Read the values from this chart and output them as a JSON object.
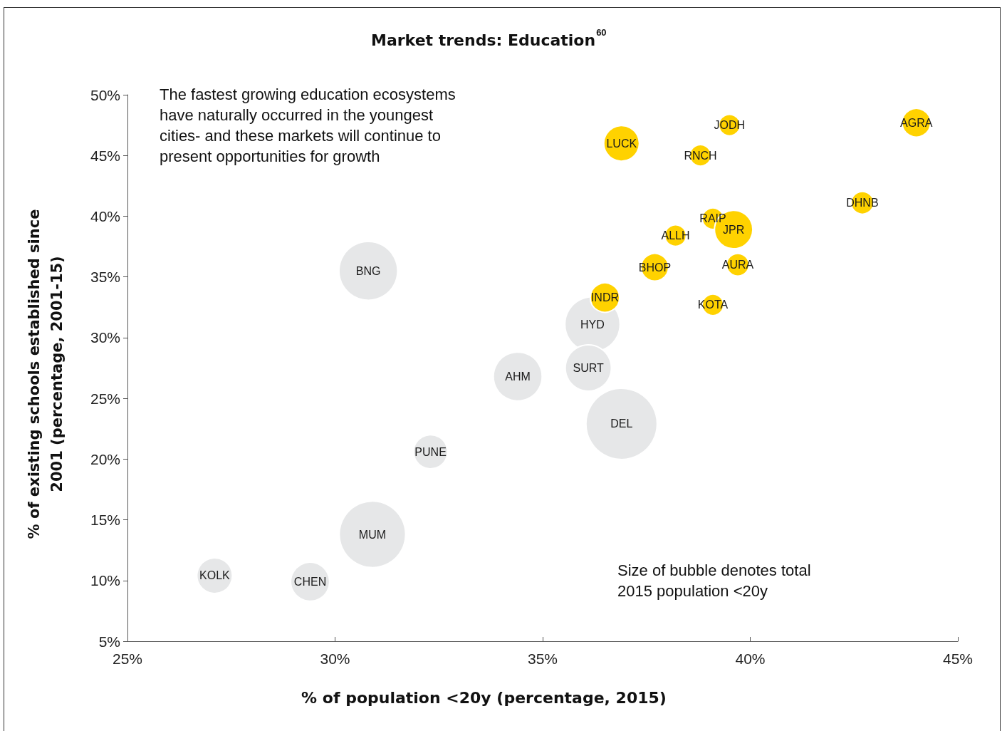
{
  "chart_data": {
    "type": "bubble",
    "title": "Market trends: Education$^{60}$",
    "xlabel": "% of population <20y (percentage, 2015)",
    "ylabel": "% of existing schools established since 2001 (percentage, 2001-15)",
    "annotations": [
      "The fastest growing education ecosystems have naturally occurred in the youngest cities- and these markets will continue to present opportunities for growth",
      "Size of bubble denotes total 2015 population <20y"
    ],
    "xlim": [
      25,
      45
    ],
    "xticks": [
      {
        "value": 25,
        "label": "25%"
      },
      {
        "value": 30,
        "label": "30%"
      },
      {
        "value": 35,
        "label": "35%"
      },
      {
        "value": 40,
        "label": "40%"
      },
      {
        "value": 45,
        "label": "45%"
      }
    ],
    "ylim": [
      5,
      50
    ],
    "yticks": [
      {
        "value": 5,
        "label": "5%"
      },
      {
        "value": 10,
        "label": "10%"
      },
      {
        "value": 15,
        "label": "15%"
      },
      {
        "value": 20,
        "label": "20%"
      },
      {
        "value": 25,
        "label": "25%"
      },
      {
        "value": 30,
        "label": "30%"
      },
      {
        "value": 35,
        "label": "35%"
      },
      {
        "value": 40,
        "label": "40%"
      },
      {
        "value": 45,
        "label": "45%"
      },
      {
        "value": 50,
        "label": "50%"
      }
    ],
    "marker": "circle",
    "series": [
      {
        "color": "#e6e7e8",
        "x": [
          30.8,
          36.2,
          36.1,
          34.4,
          36.9,
          32.3,
          30.9,
          27.1,
          29.4
        ],
        "values": [
          35.5,
          31.1,
          27.5,
          26.8,
          22.9,
          20.6,
          13.8,
          10.4,
          9.9
        ],
        "sizes": [
          0.68,
          0.6,
          0.42,
          0.47,
          1,
          0.23,
          0.87,
          0.25,
          0.3
        ],
        "value_labels": [
          "BNG",
          "HYD",
          "SURT",
          "AHM",
          "DEL",
          "PUNE",
          "MUM",
          "KOLK",
          "CHEN"
        ]
      },
      {
        "color": "#ffd200",
        "x": [
          44.0,
          39.5,
          36.9,
          38.8,
          42.7,
          39.1,
          39.6,
          38.2,
          37.7,
          39.7,
          36.5,
          39.1
        ],
        "values": [
          47.7,
          47.5,
          46.0,
          45.0,
          41.1,
          39.8,
          38.9,
          38.4,
          35.8,
          36.0,
          33.3,
          32.7
        ],
        "sizes": [
          0.16,
          0.09,
          0.25,
          0.09,
          0.1,
          0.09,
          0.29,
          0.09,
          0.15,
          0.1,
          0.17,
          0.09
        ],
        "value_labels": [
          "AGRA",
          "JODH",
          "LUCK",
          "RNCH",
          "DHNB",
          "RAIP",
          "JPR",
          "ALLH",
          "BHOP",
          "AURA",
          "INDR",
          "KOTA"
        ]
      }
    ]
  }
}
